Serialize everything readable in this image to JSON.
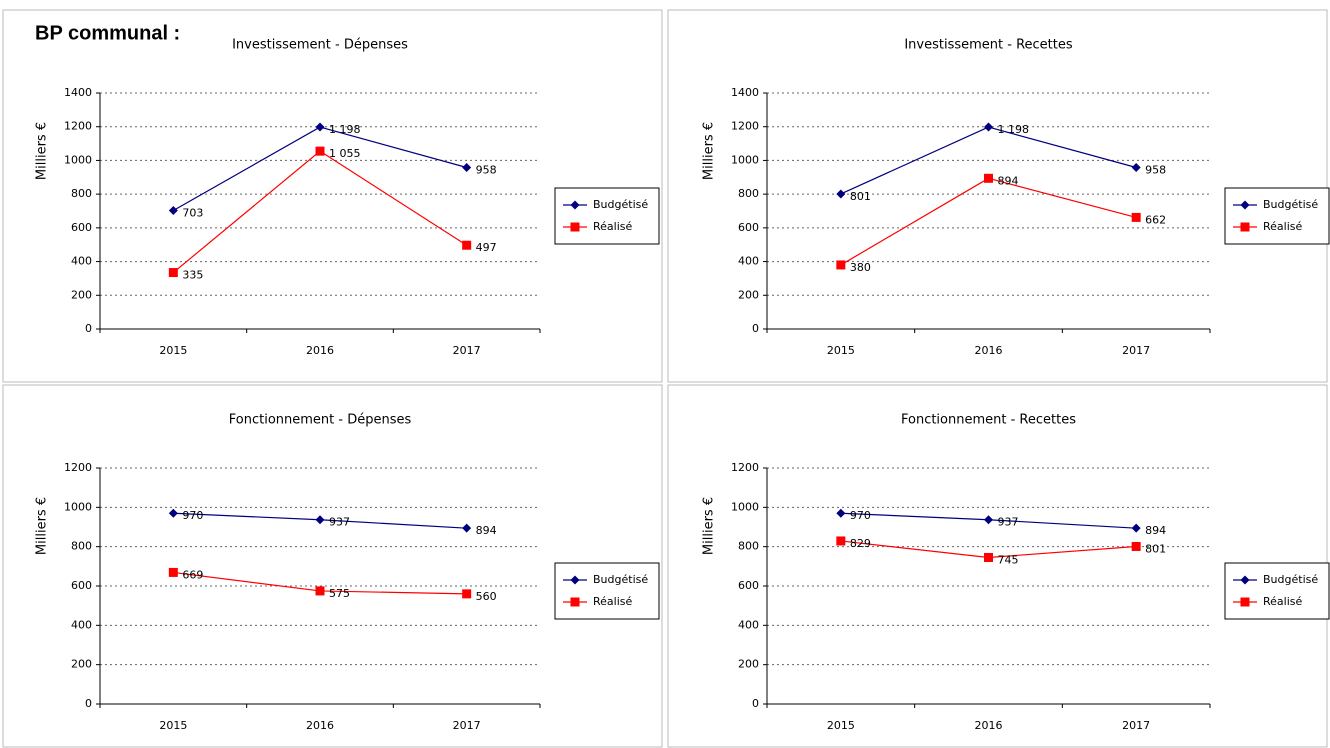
{
  "header": "BP communal :",
  "chart_data": [
    {
      "type": "line",
      "title": "Investissement - Dépenses",
      "ylabel": "Milliers €",
      "categories": [
        "2015",
        "2016",
        "2017"
      ],
      "ylim": [
        0,
        1400
      ],
      "yticks": [
        0,
        200,
        400,
        600,
        800,
        1000,
        1200,
        1400
      ],
      "grid": true,
      "legend": "right",
      "series": [
        {
          "name": "Budgétisé",
          "color": "#00007f",
          "marker": "diamond",
          "values": [
            703,
            1198,
            958
          ],
          "value_labels": [
            "703",
            "1 198",
            "958"
          ]
        },
        {
          "name": "Réalisé",
          "color": "#ff0000",
          "marker": "square",
          "values": [
            335,
            1055,
            497
          ],
          "value_labels": [
            "335",
            "1 055",
            "497"
          ]
        }
      ]
    },
    {
      "type": "line",
      "title": "Investissement - Recettes",
      "ylabel": "Milliers €",
      "categories": [
        "2015",
        "2016",
        "2017"
      ],
      "ylim": [
        0,
        1400
      ],
      "yticks": [
        0,
        200,
        400,
        600,
        800,
        1000,
        1200,
        1400
      ],
      "grid": true,
      "legend": "right",
      "series": [
        {
          "name": "Budgétisé",
          "color": "#00007f",
          "marker": "diamond",
          "values": [
            801,
            1198,
            958
          ],
          "value_labels": [
            "801",
            "1 198",
            "958"
          ]
        },
        {
          "name": "Réalisé",
          "color": "#ff0000",
          "marker": "square",
          "values": [
            380,
            894,
            662
          ]
        }
      ]
    },
    {
      "type": "line",
      "title": "Fonctionnement - Dépenses",
      "ylabel": "Milliers €",
      "categories": [
        "2015",
        "2016",
        "2017"
      ],
      "ylim": [
        0,
        1200
      ],
      "yticks": [
        0,
        200,
        400,
        600,
        800,
        1000,
        1200
      ],
      "grid": true,
      "legend": "right",
      "series": [
        {
          "name": "Budgétisé",
          "color": "#00007f",
          "marker": "diamond",
          "values": [
            970,
            937,
            894
          ]
        },
        {
          "name": "Réalisé",
          "color": "#ff0000",
          "marker": "square",
          "values": [
            669,
            575,
            560
          ]
        }
      ]
    },
    {
      "type": "line",
      "title": "Fonctionnement - Recettes",
      "ylabel": "Milliers €",
      "categories": [
        "2015",
        "2016",
        "2017"
      ],
      "ylim": [
        0,
        1200
      ],
      "yticks": [
        0,
        200,
        400,
        600,
        800,
        1000,
        1200
      ],
      "grid": true,
      "legend": "right",
      "series": [
        {
          "name": "Budgétisé",
          "color": "#00007f",
          "marker": "diamond",
          "values": [
            970,
            937,
            894
          ]
        },
        {
          "name": "Réalisé",
          "color": "#ff0000",
          "marker": "square",
          "values": [
            829,
            745,
            801
          ]
        }
      ]
    }
  ]
}
